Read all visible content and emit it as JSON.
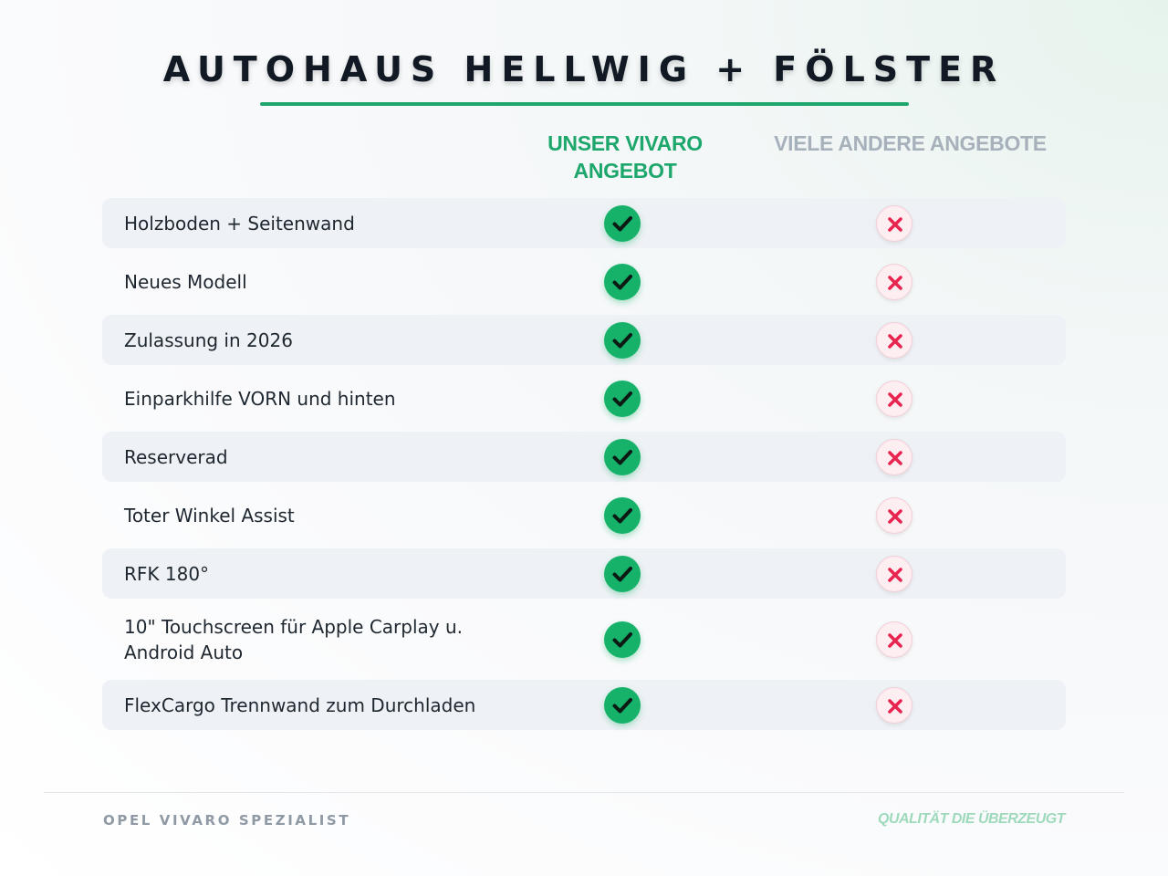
{
  "header": {
    "title": "AUTOHAUS HELLWIG + FÖLSTER"
  },
  "columns": {
    "ours": "UNSER VIVARO ANGEBOT",
    "others": "VIELE ANDERE ANGEBOTE"
  },
  "colors": {
    "accent_green": "#1ea76c",
    "check_green": "#17b26a",
    "cross_red": "#e8254f",
    "muted_gray": "#a7b1bb"
  },
  "features": [
    {
      "label": "Holzboden + Seitenwand",
      "ours": "check-icon",
      "others": "cross-icon"
    },
    {
      "label": "Neues Modell",
      "ours": "check-icon",
      "others": "cross-icon"
    },
    {
      "label": "Zulassung in 2026",
      "ours": "check-icon",
      "others": "cross-icon"
    },
    {
      "label": "Einparkhilfe VORN und hinten",
      "ours": "check-icon",
      "others": "cross-icon"
    },
    {
      "label": "Reserverad",
      "ours": "check-icon",
      "others": "cross-icon"
    },
    {
      "label": "Toter Winkel Assist",
      "ours": "check-icon",
      "others": "cross-icon"
    },
    {
      "label": "RFK 180°",
      "ours": "check-icon",
      "others": "cross-icon"
    },
    {
      "label": "10\" Touchscreen für Apple Carplay u. Android Auto",
      "ours": "check-icon",
      "others": "cross-icon"
    },
    {
      "label": "FlexCargo Trennwand zum Durchladen",
      "ours": "check-icon",
      "others": "cross-icon"
    }
  ],
  "footer": {
    "left": "OPEL VIVARO SPEZIALIST",
    "right": "QUALITÄT DIE ÜBERZEUGT"
  }
}
